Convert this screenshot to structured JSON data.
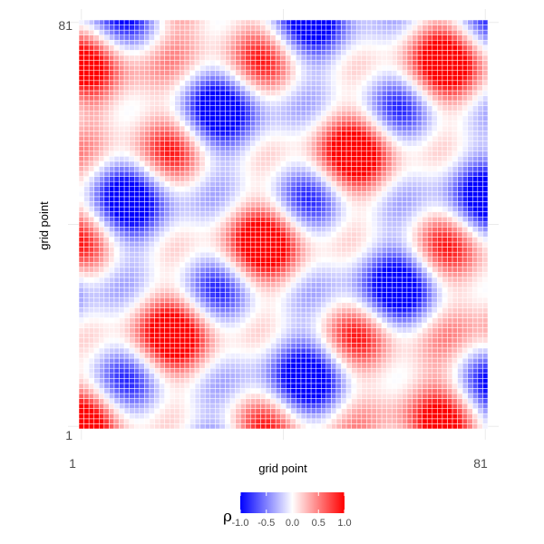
{
  "chart_data": {
    "type": "heatmap",
    "xlabel": "grid point",
    "ylabel": "grid point",
    "x_range": [
      1,
      81
    ],
    "y_range": [
      1,
      81
    ],
    "x_tick_labels": [
      "1",
      "81"
    ],
    "y_tick_labels": [
      "1",
      "81"
    ],
    "grid_size": 81,
    "value_range": [
      -1.0,
      1.0
    ],
    "legend": {
      "title": "ρ",
      "position": "bottom",
      "tick_labels": [
        "-1.0",
        "-0.5",
        "0.0",
        "0.5",
        "1.0"
      ],
      "tick_values": [
        -1.0,
        -0.5,
        0.0,
        0.5,
        1.0
      ]
    },
    "colors": {
      "low": "#0000ff",
      "mid": "#ffffff",
      "high": "#ff0000",
      "cell_border": "#ffffff"
    },
    "grid": true,
    "approximate_pattern": {
      "description_of_values": "correlation between grid points; periodic stripe/checkerboard pattern",
      "terms": [
        {
          "axis": "sum",
          "period_cells": 36,
          "amplitude": 0.45
        },
        {
          "axis": "x",
          "period_cells": 18,
          "amplitude": 0.35
        },
        {
          "axis": "y",
          "period_cells": 18,
          "amplitude": 0.35
        },
        {
          "axis": "diff",
          "period_cells": 60,
          "amplitude": 0.3
        }
      ]
    }
  }
}
